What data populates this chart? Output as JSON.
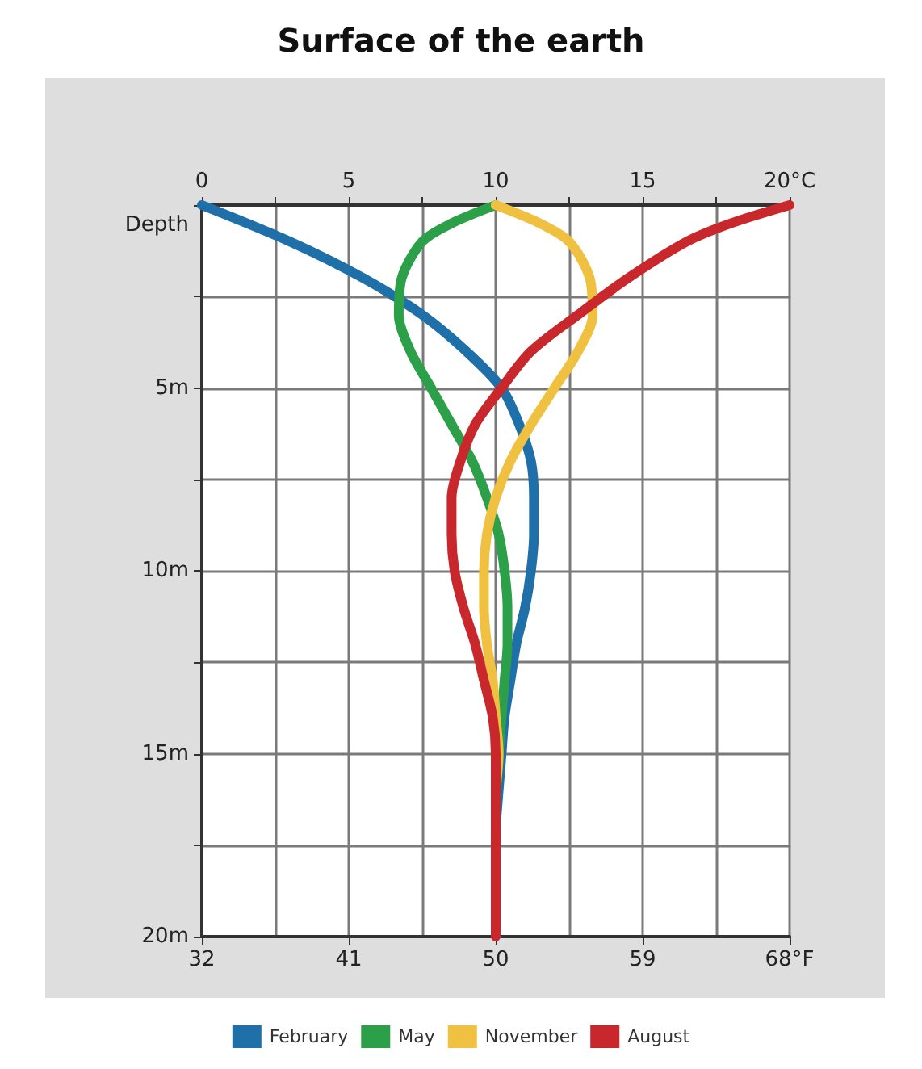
{
  "chart_data": {
    "type": "line",
    "title": "Surface of the earth",
    "ylabel": "Depth",
    "xlim": [
      0,
      20
    ],
    "xticks": [
      0,
      {
        "value": 2.5,
        "label": null
      },
      5,
      {
        "value": 7.5,
        "label": null
      },
      10,
      {
        "value": 12.5,
        "label": null
      },
      15,
      {
        "value": 17.5,
        "label": null
      },
      {
        "value": 20,
        "label": "20°C"
      }
    ],
    "x2lim": [
      32,
      68
    ],
    "x2ticks": [
      32,
      41,
      50,
      59,
      {
        "value": 68,
        "label": "68°F"
      }
    ],
    "ylim": [
      20,
      0
    ],
    "yticks": [
      {
        "value": 0,
        "label": null
      },
      {
        "value": 2.5,
        "label": null
      },
      {
        "value": 5,
        "label": "5m"
      },
      {
        "value": 7.5,
        "label": null
      },
      {
        "value": 10,
        "label": "10m"
      },
      {
        "value": 12.5,
        "label": null
      },
      {
        "value": 15,
        "label": "15m"
      },
      {
        "value": 17.5,
        "label": null
      },
      {
        "value": 20,
        "label": "20m"
      }
    ],
    "grid": true,
    "legend": "bottom",
    "marker": "none",
    "series": [
      {
        "name": "February",
        "color": "#1f6fa8",
        "x": [
          0,
          3,
          5.5,
          7.5,
          9,
          10.2,
          10.8,
          11.2,
          11.3,
          11.3,
          11.2,
          11,
          10.7,
          10.5,
          10.3,
          10.2,
          10.1,
          10
        ],
        "values": [
          0,
          1,
          2,
          3,
          4,
          5,
          6,
          7,
          8,
          9,
          10,
          11,
          12,
          13,
          14,
          15,
          16,
          17
        ]
      },
      {
        "name": "May",
        "color": "#2ca048",
        "x": [
          10,
          8.5,
          7.5,
          6.8,
          6.7,
          7.1,
          7.8,
          8.5,
          9.2,
          9.7,
          10.1,
          10.3,
          10.4,
          10.4,
          10.3,
          10.2,
          10.1,
          10
        ],
        "values": [
          0,
          0.5,
          1,
          2,
          3,
          4,
          5,
          6,
          7,
          8,
          9,
          10,
          11,
          12,
          13,
          14,
          15,
          16
        ]
      },
      {
        "name": "November",
        "color": "#f0c040",
        "x": [
          10,
          11.5,
          12.5,
          13.2,
          13.3,
          12.8,
          12,
          11.2,
          10.5,
          10,
          9.7,
          9.6,
          9.6,
          9.7,
          9.9,
          10,
          10.1,
          10
        ],
        "values": [
          0,
          0.5,
          1,
          2,
          3,
          4,
          5,
          6,
          7,
          8,
          9,
          10,
          11,
          12,
          13,
          14,
          15,
          16
        ]
      },
      {
        "name": "August",
        "color": "#c8282c",
        "x": [
          20,
          18,
          16.5,
          14.5,
          12.8,
          11.2,
          10.2,
          9.3,
          8.8,
          8.5,
          8.5,
          8.6,
          8.9,
          9.3,
          9.6,
          9.9,
          10,
          10,
          10,
          10,
          10,
          10
        ],
        "values": [
          0,
          0.5,
          1,
          2,
          3,
          4,
          5,
          6,
          7,
          8,
          9,
          10,
          11,
          12,
          13,
          14,
          15,
          16,
          17,
          18,
          19,
          20
        ]
      }
    ]
  }
}
